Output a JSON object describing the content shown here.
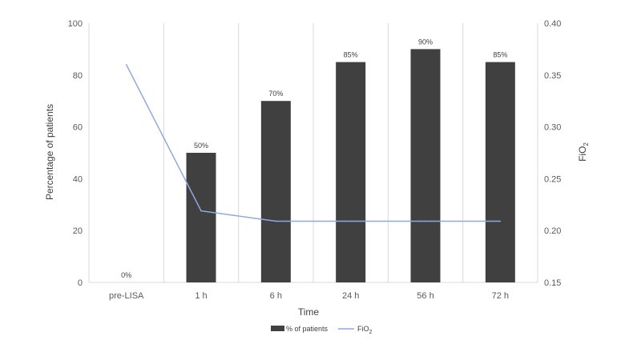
{
  "chart_data": {
    "type": "bar",
    "categories": [
      "pre-LISA",
      "1 h",
      "6 h",
      "24 h",
      "56 h",
      "72 h"
    ],
    "series": [
      {
        "name": "% of patients",
        "kind": "bar",
        "axis": "left",
        "values": [
          0,
          50,
          70,
          85,
          90,
          85
        ],
        "labels": [
          "0%",
          "50%",
          "70%",
          "85%",
          "90%",
          "85%"
        ],
        "color": "#404040"
      },
      {
        "name": "FiO2",
        "kind": "line",
        "axis": "right",
        "values": [
          0.36,
          0.219,
          0.209,
          0.209,
          0.209,
          0.209
        ],
        "color": "#8faadc"
      }
    ],
    "xlabel": "Time",
    "ylabel": "Percentage of patients",
    "y2label": "FiO2",
    "ylim": [
      0,
      100
    ],
    "yticks": [
      0,
      20,
      40,
      60,
      80,
      100
    ],
    "y2lim": [
      0.15,
      0.4
    ],
    "y2ticks": [
      "0.15",
      "0.20",
      "0.25",
      "0.30",
      "0.35",
      "0.40"
    ],
    "grid": "vertical",
    "legend": "bottom-center"
  }
}
